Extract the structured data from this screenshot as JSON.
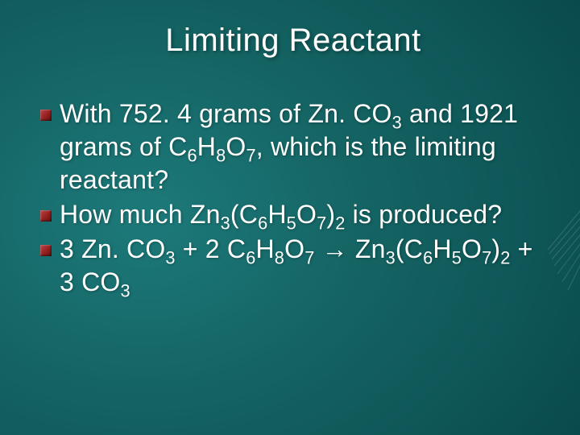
{
  "slide": {
    "title": "Limiting Reactant",
    "title_fontsize": 40,
    "title_color": "#ffffff",
    "body_fontsize": 32,
    "body_color": "#ffffff",
    "bullet_color_gradient": [
      "#b44444",
      "#992222",
      "#661111"
    ],
    "background_gradient": {
      "type": "radial",
      "center": "left-mid",
      "stops": [
        "#1d7a7a",
        "#156464",
        "#0e5556",
        "#084447",
        "#053638"
      ]
    },
    "bullets": [
      {
        "plain": "With 752. 4 grams of Zn. CO3 and 1921 grams of C6H8O7, which is the limiting reactant?",
        "html": "With 752. 4 grams of Zn. CO<sub>3</sub> and 1921 grams of C<sub>6</sub>H<sub>8</sub>O<sub>7</sub>, which is the limiting reactant?"
      },
      {
        "plain": "How much Zn3(C6H5O7)2 is produced?",
        "html": "How much Zn<sub>3</sub>(C<sub>6</sub>H<sub>5</sub>O<sub>7</sub>)<sub>2</sub> is produced?"
      },
      {
        "plain": "3 Zn. CO3 + 2 C6H8O7 → Zn3(C6H5O7)2 + 3 CO3",
        "html": "3 Zn. CO<sub>3</sub> + 2 C<sub>6</sub>H<sub>8</sub>O<sub>7</sub> &rarr; Zn<sub>3</sub>(C<sub>6</sub>H<sub>5</sub>O<sub>7</sub>)<sub>2</sub> + 3 CO<sub>3</sub>"
      }
    ],
    "decorative_rays_color": "#7fa8a8"
  }
}
